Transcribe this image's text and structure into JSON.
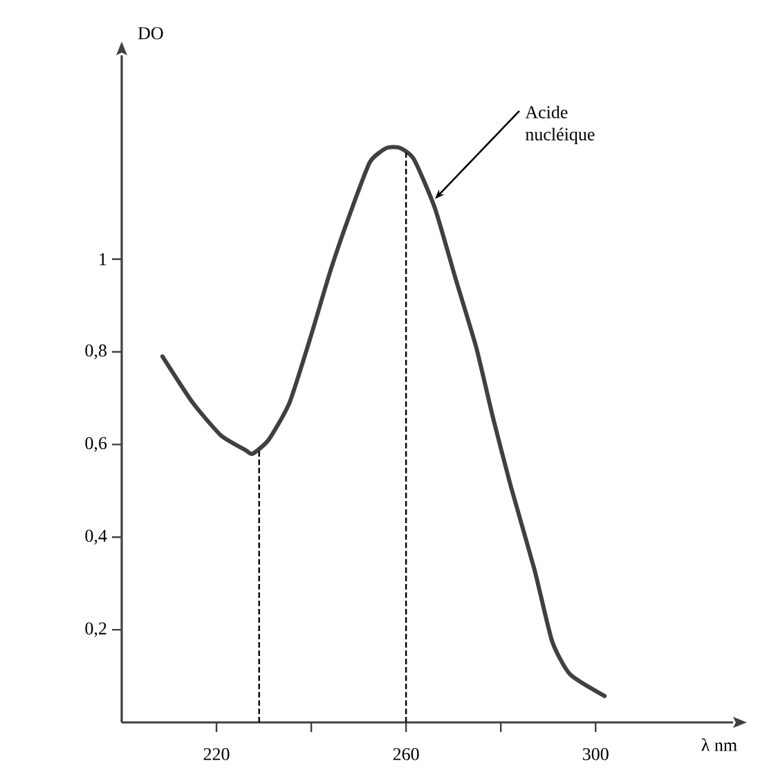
{
  "chart_data": {
    "type": "line",
    "xlabel": "λ nm",
    "ylabel": "DO",
    "xlim": [
      200,
      329
    ],
    "ylim": [
      0,
      1.44
    ],
    "xticks": [
      220,
      {
        "value": 240,
        "label": null
      },
      260,
      {
        "value": 280,
        "label": null
      },
      300
    ],
    "yticks": [
      {
        "value": 0.2,
        "label": "0,2"
      },
      {
        "value": 0.4,
        "label": "0,4"
      },
      {
        "value": 0.6,
        "label": "0,6"
      },
      {
        "value": 0.8,
        "label": "0,8"
      },
      1
    ],
    "series": [
      {
        "color": "#404040",
        "x": [
          208.6,
          215,
          220.9,
          226.1,
          227.6,
          231,
          235.4,
          239.8,
          244.2,
          248.6,
          252.4,
          255.9,
          258.8,
          261.7,
          266.1,
          270.4,
          274.8,
          278.3,
          282.1,
          287.1,
          290.8,
          294.6,
          301.9
        ],
        "values": [
          0.79,
          0.69,
          0.62,
          0.588,
          0.58,
          0.61,
          0.69,
          0.83,
          0.98,
          1.11,
          1.21,
          1.24,
          1.24,
          1.215,
          1.11,
          0.96,
          0.81,
          0.66,
          0.51,
          0.33,
          0.176,
          0.104,
          0.057
        ]
      }
    ],
    "ref_lines": [
      {
        "axis": "x",
        "value": 229,
        "line_style": "dashed"
      },
      {
        "axis": "x",
        "value": 260,
        "line_style": "dashed"
      }
    ],
    "annotations": [
      {
        "text": "Acide nucléique",
        "x": 266.1,
        "y": 1.13
      }
    ],
    "grid": false,
    "marker": "none",
    "line_style": "solid"
  }
}
